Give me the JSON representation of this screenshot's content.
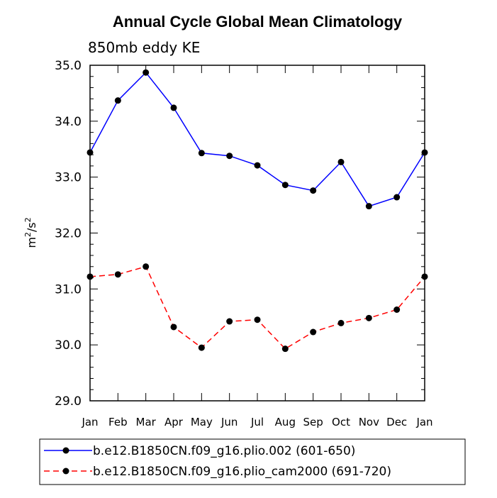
{
  "chart_data": {
    "type": "line",
    "title": "Annual Cycle Global Mean Climatology",
    "subtitle": "850mb eddy KE",
    "xlabel": "",
    "ylabel_base": "m",
    "ylabel_sup1": "2",
    "ylabel_mid": "/s",
    "ylabel_sup2": "2",
    "ylim": [
      29.0,
      35.0
    ],
    "yticks": [
      "29.0",
      "30.0",
      "31.0",
      "32.0",
      "33.0",
      "34.0",
      "35.0"
    ],
    "categories": [
      "Jan",
      "Feb",
      "Mar",
      "Apr",
      "May",
      "Jun",
      "Jul",
      "Aug",
      "Sep",
      "Oct",
      "Nov",
      "Dec",
      "Jan"
    ],
    "series": [
      {
        "name": "b.e12.B1850CN.f09_g16.plio.002 (601-650)",
        "color": "#0000ff",
        "dash": "solid",
        "values": [
          33.44,
          34.37,
          34.87,
          34.24,
          33.43,
          33.38,
          33.21,
          32.86,
          32.76,
          33.27,
          32.48,
          32.64,
          33.44
        ]
      },
      {
        "name": "b.e12.B1850CN.f09_g16.plio_cam2000 (691-720)",
        "color": "#ff0000",
        "dash": "dashed",
        "values": [
          31.22,
          31.26,
          31.4,
          30.32,
          29.95,
          30.42,
          30.45,
          29.93,
          30.23,
          30.39,
          30.48,
          30.63,
          31.22
        ]
      }
    ],
    "legend_placement": "bottom"
  }
}
